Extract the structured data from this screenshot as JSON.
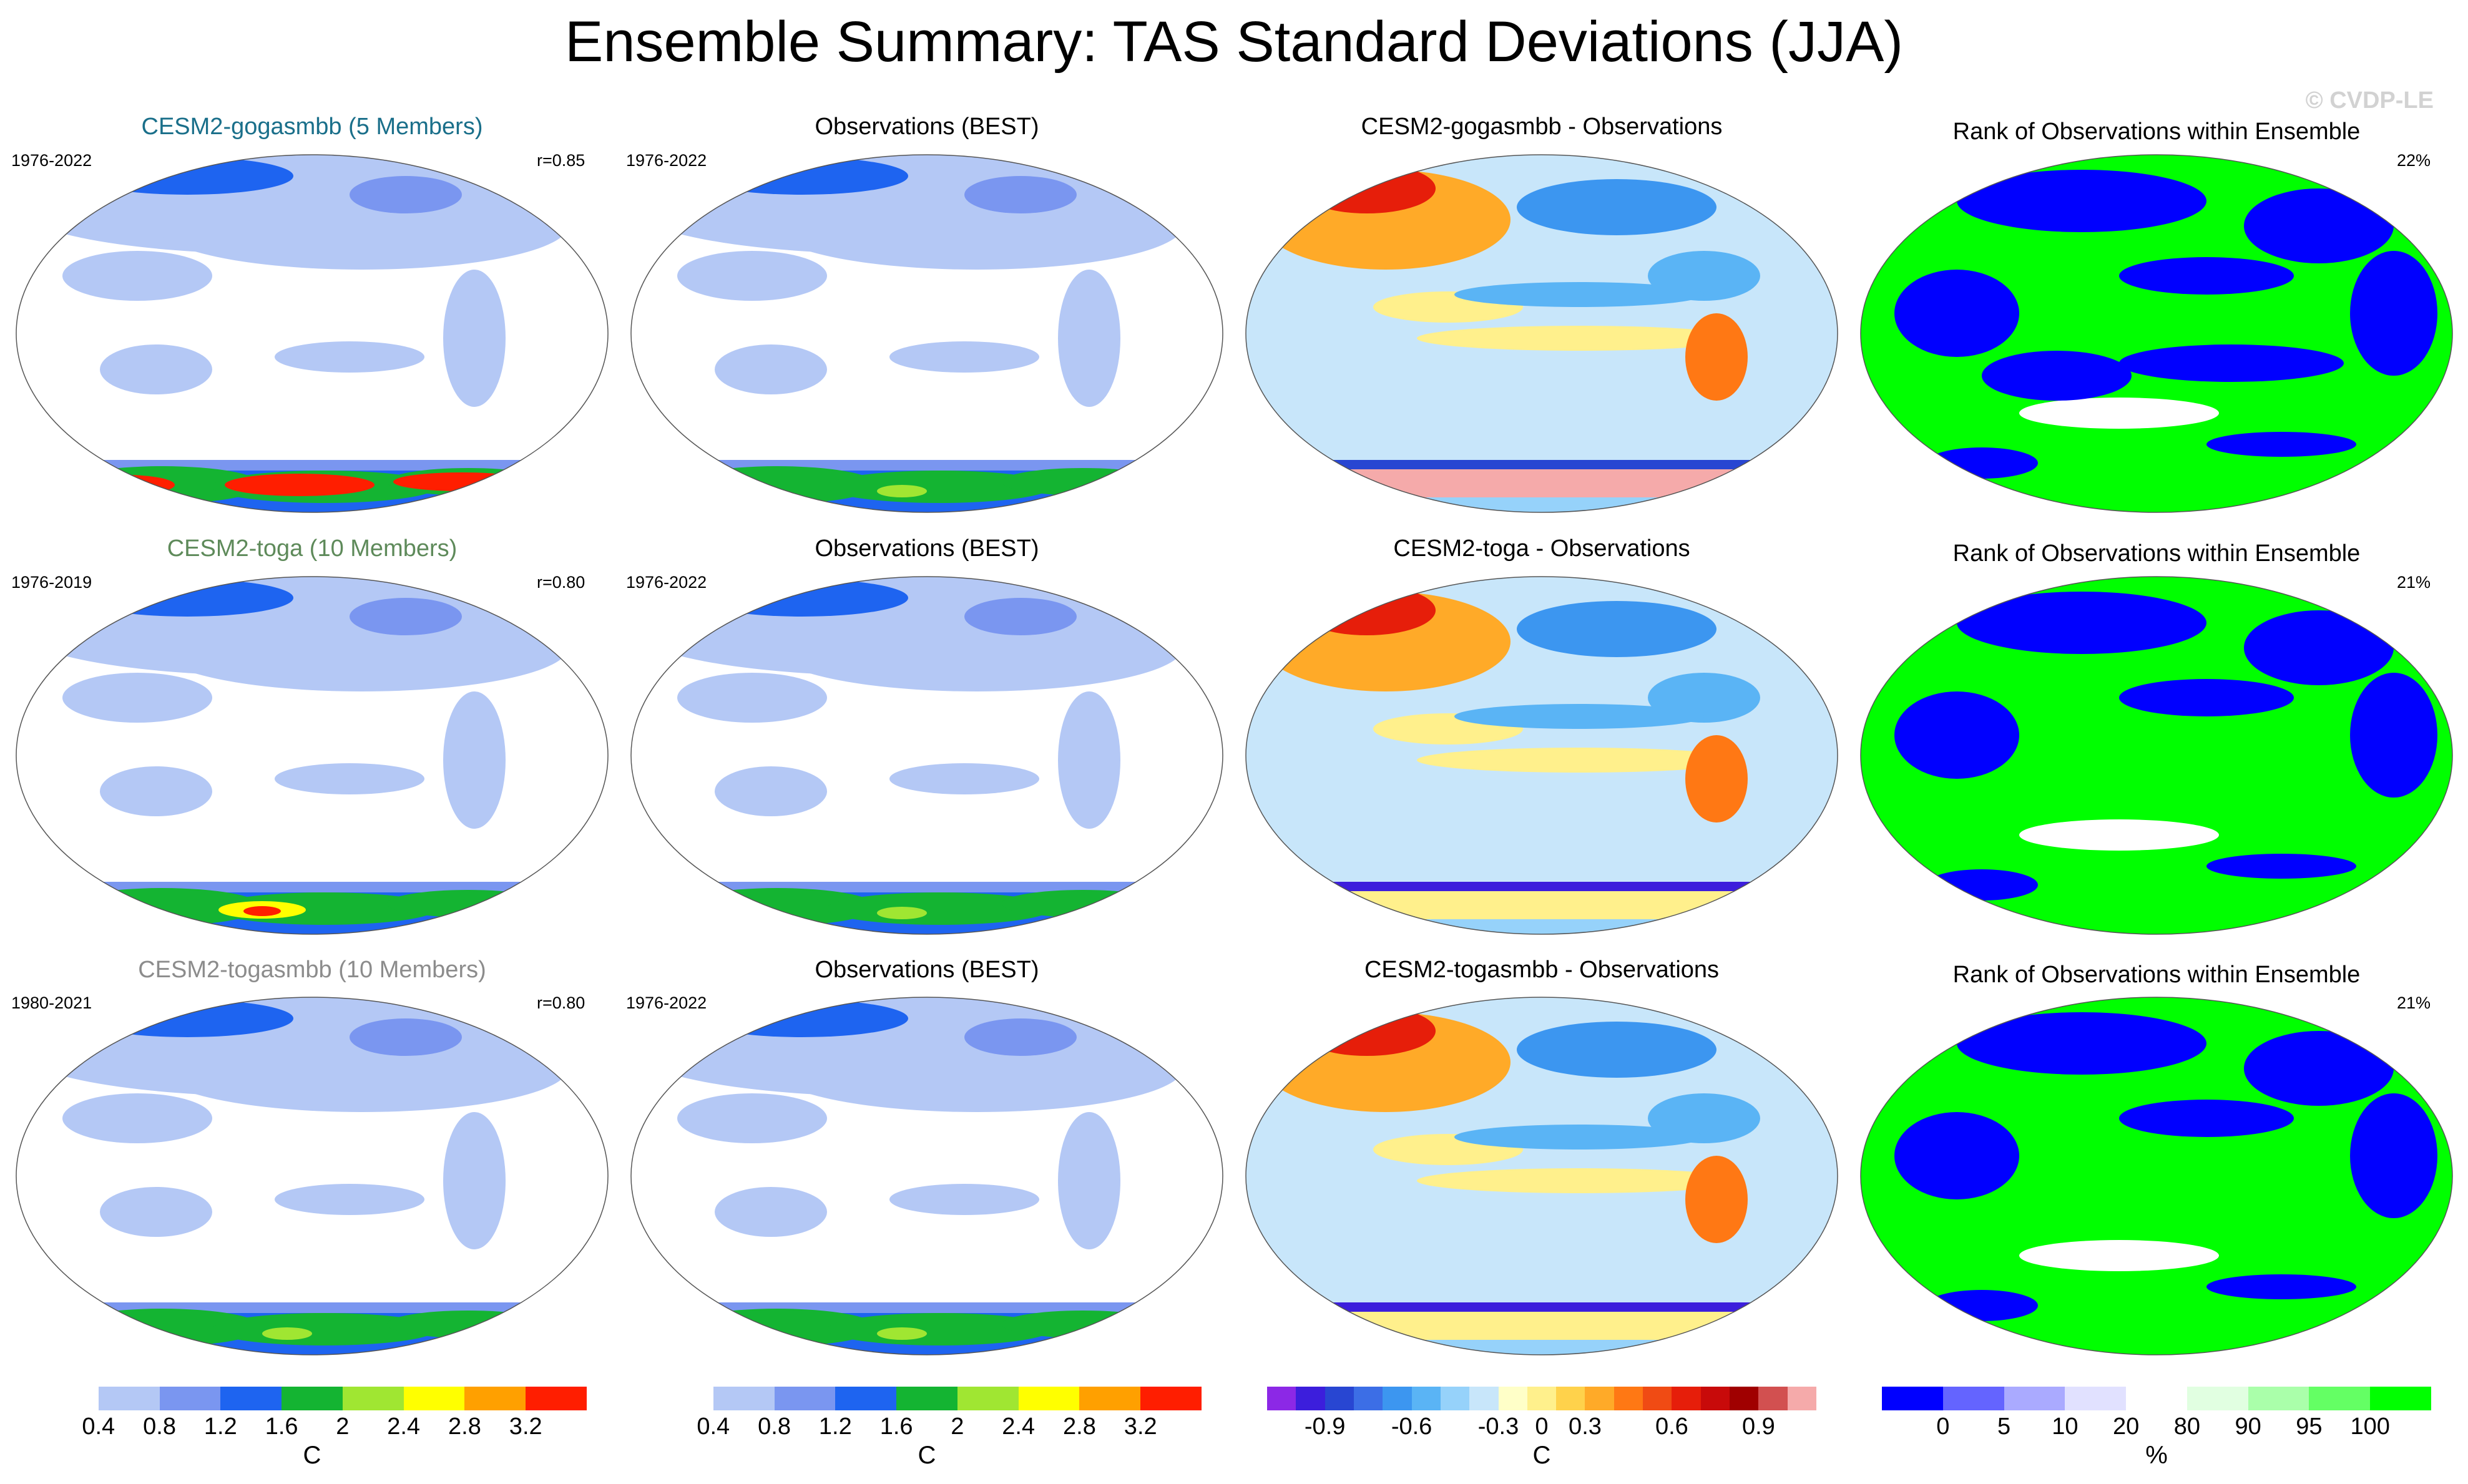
{
  "title": "Ensemble Summary: TAS Standard Deviations (JJA)",
  "watermark": "© CVDP-LE",
  "rows": [
    {
      "model_title": "CESM2-gogasmbb (5 Members)",
      "model_color": "#1a6f8a",
      "model_years": "1976-2022",
      "model_r": "r=0.85",
      "obs_title": "Observations (BEST)",
      "obs_years": "1976-2022",
      "diff_title": "CESM2-gogasmbb - Observations",
      "rank_title": "Rank of Observations within Ensemble",
      "rank_pct": "22%"
    },
    {
      "model_title": "CESM2-toga (10 Members)",
      "model_color": "#5e8a5a",
      "model_years": "1976-2019",
      "model_r": "r=0.80",
      "obs_title": "Observations (BEST)",
      "obs_years": "1976-2022",
      "diff_title": "CESM2-toga - Observations",
      "rank_title": "Rank of Observations within Ensemble",
      "rank_pct": "21%"
    },
    {
      "model_title": "CESM2-togasmbb (10 Members)",
      "model_color": "#8c8c8c",
      "model_years": "1980-2021",
      "model_r": "r=0.80",
      "obs_title": "Observations (BEST)",
      "obs_years": "1976-2022",
      "diff_title": "CESM2-togasmbb - Observations",
      "rank_title": "Rank of Observations within Ensemble",
      "rank_pct": "21%"
    }
  ],
  "colorbars": {
    "std": {
      "colors": [
        "#ffffff",
        "#b4c8f5",
        "#7a96f0",
        "#1e64f0",
        "#14b432",
        "#a0e632",
        "#ffff00",
        "#ffa000",
        "#ff1e00"
      ],
      "ticks": [
        "0.4",
        "0.8",
        "1.2",
        "1.6",
        "2",
        "2.4",
        "2.8",
        "3.2"
      ],
      "unit": "C"
    },
    "diff": {
      "colors": [
        "#8c28e6",
        "#3c1edc",
        "#2846d2",
        "#3c6ee6",
        "#3c96f0",
        "#5ab4f5",
        "#96d2fa",
        "#c8e6fa",
        "#ffffc8",
        "#fff08c",
        "#ffd24b",
        "#ffaa28",
        "#ff7814",
        "#f04b14",
        "#e61e0a",
        "#c80a0a",
        "#a00000",
        "#d25050",
        "#f5aaaa"
      ],
      "ticks": [
        "-0.9",
        "-0.6",
        "-0.3",
        "0",
        "0.3",
        "0.6",
        "0.9"
      ],
      "unit": "C"
    },
    "rank": {
      "colors": [
        "#0000ff",
        "#6464ff",
        "#aaaaff",
        "#e1e1ff",
        "#ffffff",
        "#e1ffe1",
        "#aaffaa",
        "#64ff64",
        "#00ff00"
      ],
      "ticks": [
        "0",
        "5",
        "10",
        "20",
        "80",
        "90",
        "95",
        "100"
      ],
      "unit": "%"
    }
  }
}
